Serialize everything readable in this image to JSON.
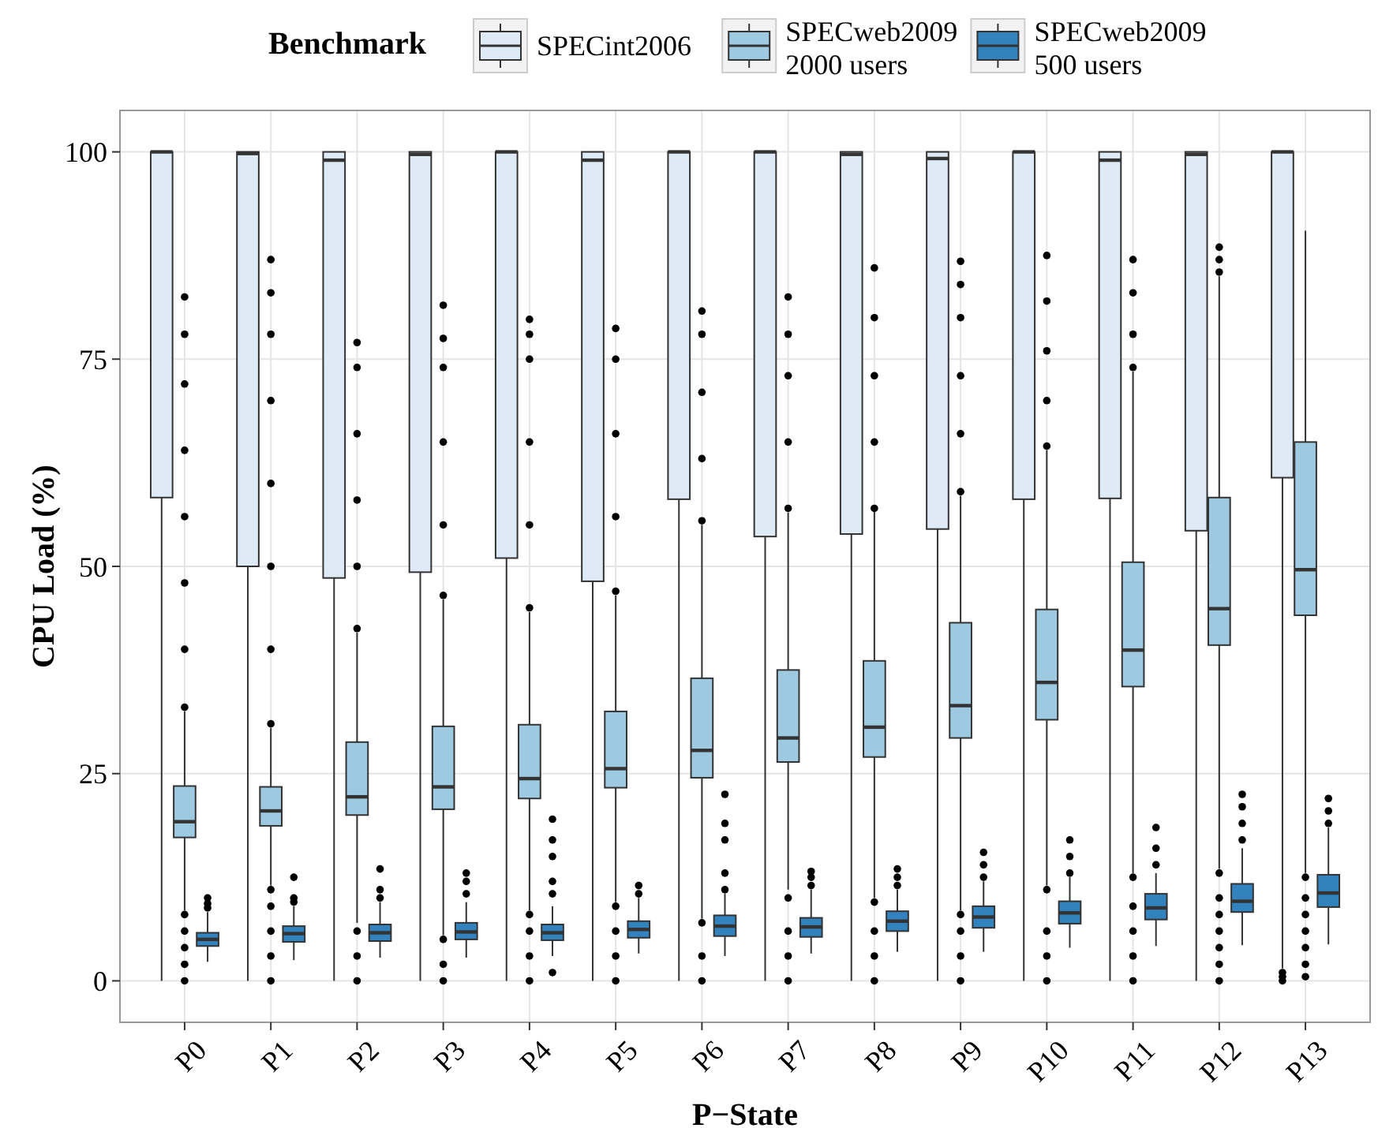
{
  "chart_data": {
    "type": "box",
    "xlabel": "P−State",
    "ylabel": "CPU Load (%)",
    "legend_title": "Benchmark",
    "legend": "top",
    "grid": true,
    "categories": [
      "P0",
      "P1",
      "P2",
      "P3",
      "P4",
      "P5",
      "P6",
      "P7",
      "P8",
      "P9",
      "P10",
      "P11",
      "P12",
      "P13"
    ],
    "ylim": [
      -5,
      105
    ],
    "yticks": [
      0,
      25,
      50,
      75,
      100
    ],
    "series": [
      {
        "name": "SPECint2006",
        "color": "#deebf7",
        "boxes": [
          {
            "low": 0,
            "q1": 58.3,
            "median": 100,
            "q3": 100,
            "high": 100
          },
          {
            "low": 0,
            "q1": 50,
            "median": 99.8,
            "q3": 100,
            "high": 100
          },
          {
            "low": 0,
            "q1": 48.6,
            "median": 99,
            "q3": 100,
            "high": 100
          },
          {
            "low": 0,
            "q1": 49.3,
            "median": 99.7,
            "q3": 100,
            "high": 100
          },
          {
            "low": 0,
            "q1": 51,
            "median": 100,
            "q3": 100,
            "high": 100
          },
          {
            "low": 0,
            "q1": 48.2,
            "median": 99,
            "q3": 100,
            "high": 100
          },
          {
            "low": 0,
            "q1": 58.1,
            "median": 100,
            "q3": 100,
            "high": 100
          },
          {
            "low": 0,
            "q1": 53.6,
            "median": 100,
            "q3": 100,
            "high": 100
          },
          {
            "low": 0,
            "q1": 53.9,
            "median": 99.7,
            "q3": 100,
            "high": 100
          },
          {
            "low": 0,
            "q1": 54.5,
            "median": 99.2,
            "q3": 100,
            "high": 100
          },
          {
            "low": 0,
            "q1": 58.1,
            "median": 100,
            "q3": 100,
            "high": 100
          },
          {
            "low": 0,
            "q1": 58.2,
            "median": 99,
            "q3": 100,
            "high": 100
          },
          {
            "low": 0,
            "q1": 54.3,
            "median": 99.7,
            "q3": 100,
            "high": 100
          },
          {
            "low": 1.5,
            "q1": 60.7,
            "median": 100,
            "q3": 100,
            "high": 100,
            "outliers": [
              0,
              0.5,
              1
            ]
          }
        ]
      },
      {
        "name": "SPECweb2009\n2000 users",
        "color": "#9ecae1",
        "boxes": [
          {
            "low": 8.5,
            "q1": 17.3,
            "median": 19.2,
            "q3": 23.5,
            "high": 32.5,
            "outliers": [
              0,
              2,
              4,
              6,
              8,
              33,
              40,
              48,
              56,
              64,
              72,
              78,
              82.5
            ]
          },
          {
            "low": 11.5,
            "q1": 18.7,
            "median": 20.5,
            "q3": 23.4,
            "high": 30.5,
            "outliers": [
              0,
              3,
              6,
              9,
              11,
              31,
              40,
              50,
              60,
              70,
              78,
              83,
              87
            ]
          },
          {
            "low": 7,
            "q1": 20,
            "median": 22.2,
            "q3": 28.8,
            "high": 42,
            "outliers": [
              0,
              3,
              6,
              42.5,
              50,
              58,
              66,
              74,
              77
            ]
          },
          {
            "low": 5.5,
            "q1": 20.7,
            "median": 23.4,
            "q3": 30.7,
            "high": 46,
            "outliers": [
              0,
              2,
              5,
              46.5,
              55,
              65,
              74,
              77.5,
              81.5
            ]
          },
          {
            "low": 8.5,
            "q1": 22,
            "median": 24.4,
            "q3": 30.9,
            "high": 44.5,
            "outliers": [
              0,
              3,
              6,
              8,
              45,
              55,
              65,
              75,
              78,
              79.8
            ]
          },
          {
            "low": 9.5,
            "q1": 23.3,
            "median": 25.6,
            "q3": 32.5,
            "high": 46.5,
            "outliers": [
              0,
              3,
              6,
              9,
              47,
              56,
              66,
              75,
              78.7
            ]
          },
          {
            "low": 7.5,
            "q1": 24.5,
            "median": 27.8,
            "q3": 36.5,
            "high": 55,
            "outliers": [
              0,
              3,
              7,
              55.5,
              63,
              71,
              78,
              80.8
            ]
          },
          {
            "low": 11,
            "q1": 26.4,
            "median": 29.3,
            "q3": 37.5,
            "high": 56.5,
            "outliers": [
              0,
              3,
              6,
              10,
              57,
              65,
              73,
              78,
              82.5
            ]
          },
          {
            "low": 10,
            "q1": 27,
            "median": 30.6,
            "q3": 38.6,
            "high": 56.8,
            "outliers": [
              0,
              3,
              6,
              9.5,
              57,
              65,
              73,
              80,
              86
            ]
          },
          {
            "low": 8.5,
            "q1": 29.3,
            "median": 33.2,
            "q3": 43.2,
            "high": 58.5,
            "outliers": [
              0,
              3,
              6,
              8,
              59,
              66,
              73,
              80,
              84,
              86.8
            ]
          },
          {
            "low": 11.5,
            "q1": 31.5,
            "median": 36,
            "q3": 44.8,
            "high": 64,
            "outliers": [
              0,
              3,
              6,
              11,
              64.5,
              70,
              76,
              82,
              87.5
            ]
          },
          {
            "low": 13,
            "q1": 35.5,
            "median": 39.9,
            "q3": 50.5,
            "high": 73.5,
            "outliers": [
              0,
              3,
              6,
              9,
              12.5,
              74,
              78,
              83,
              87
            ]
          },
          {
            "low": 13.5,
            "q1": 40.5,
            "median": 44.9,
            "q3": 58.3,
            "high": 85,
            "outliers": [
              0,
              2,
              4,
              6,
              8,
              10,
              13,
              85.5,
              87,
              88.5
            ]
          },
          {
            "low": 13,
            "q1": 44.1,
            "median": 49.6,
            "q3": 65,
            "high": 90.5,
            "outliers": [
              0.5,
              2,
              4,
              6,
              8,
              10,
              12.5
            ]
          }
        ]
      },
      {
        "name": "SPECweb2009\n500 users",
        "color": "#3182bd",
        "boxes": [
          {
            "low": 2.3,
            "q1": 4.2,
            "median": 5,
            "q3": 5.8,
            "high": 8.3,
            "outliers": [
              8.8,
              9.3,
              10
            ]
          },
          {
            "low": 2.5,
            "q1": 4.7,
            "median": 5.7,
            "q3": 6.6,
            "high": 9,
            "outliers": [
              9.5,
              10,
              12.5
            ]
          },
          {
            "low": 2.8,
            "q1": 4.8,
            "median": 5.8,
            "q3": 6.8,
            "high": 9.5,
            "outliers": [
              10,
              11,
              13.5
            ]
          },
          {
            "low": 2.8,
            "q1": 5,
            "median": 5.9,
            "q3": 7,
            "high": 9.5,
            "outliers": [
              10.5,
              12,
              13
            ]
          },
          {
            "low": 3,
            "q1": 4.9,
            "median": 5.8,
            "q3": 6.8,
            "high": 9,
            "outliers": [
              1,
              10.5,
              12,
              15,
              17,
              19.5
            ]
          },
          {
            "low": 3.3,
            "q1": 5.2,
            "median": 6.2,
            "q3": 7.2,
            "high": 10,
            "outliers": [
              10.5,
              11.5
            ]
          },
          {
            "low": 3,
            "q1": 5.4,
            "median": 6.6,
            "q3": 7.9,
            "high": 10.5,
            "outliers": [
              11,
              13,
              17,
              19,
              22.5
            ]
          },
          {
            "low": 3.3,
            "q1": 5.3,
            "median": 6.5,
            "q3": 7.6,
            "high": 11,
            "outliers": [
              11.5,
              12.5,
              13.2
            ]
          },
          {
            "low": 3.5,
            "q1": 6,
            "median": 7.2,
            "q3": 8.4,
            "high": 11,
            "outliers": [
              11.5,
              12.5,
              13.5
            ]
          },
          {
            "low": 3.5,
            "q1": 6.4,
            "median": 7.7,
            "q3": 9,
            "high": 12,
            "outliers": [
              12.5,
              14,
              15.5
            ]
          },
          {
            "low": 4,
            "q1": 6.9,
            "median": 8.2,
            "q3": 9.6,
            "high": 12.5,
            "outliers": [
              13,
              15,
              17
            ]
          },
          {
            "low": 4.2,
            "q1": 7.4,
            "median": 8.8,
            "q3": 10.5,
            "high": 13,
            "outliers": [
              14,
              16,
              18.5
            ]
          },
          {
            "low": 4.3,
            "q1": 8.3,
            "median": 9.6,
            "q3": 11.7,
            "high": 16,
            "outliers": [
              17,
              19,
              21,
              22.5
            ]
          },
          {
            "low": 4.4,
            "q1": 8.9,
            "median": 10.6,
            "q3": 12.8,
            "high": 18.5,
            "outliers": [
              19,
              20.5,
              22
            ]
          }
        ]
      }
    ]
  }
}
